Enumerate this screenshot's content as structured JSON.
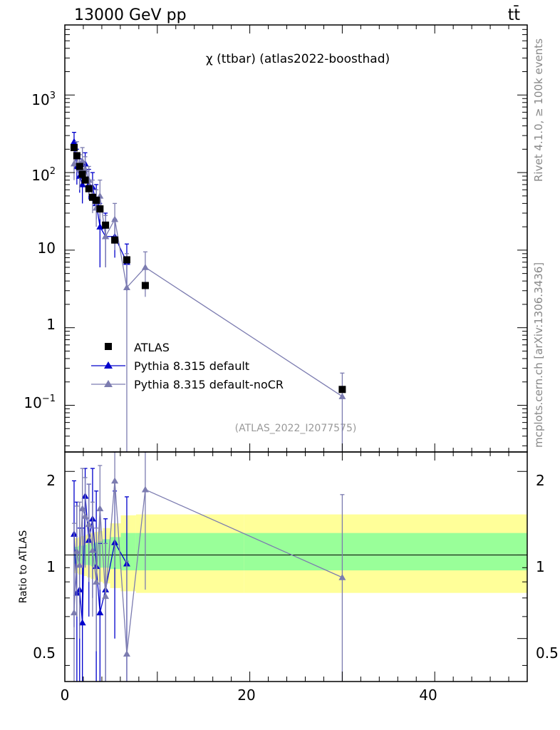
{
  "header": {
    "left": "13000 GeV pp",
    "right": "tt̄"
  },
  "side_labels": {
    "top": "Rivet 4.1.0, ≥ 100k events",
    "bottom": "mcplots.cern.ch [arXiv:1306.3436]"
  },
  "chart_data": {
    "type": "scatter",
    "title": "χ (ttbar) (atlas2022-boosthad)",
    "watermark": "(ATLAS_2022_I2077575)",
    "xlabel": "",
    "ylabel": "",
    "ratio_ylabel": "Ratio to ATLAS",
    "xlim": [
      0,
      50
    ],
    "ylim": [
      0.025,
      8000
    ],
    "ratio_ylim": [
      0.35,
      2.35
    ],
    "main_yticks": [
      {
        "value": 1000,
        "base": "10",
        "exp": "3"
      },
      {
        "value": 100,
        "base": "10",
        "exp": "2"
      },
      {
        "value": 10,
        "base": "10",
        "exp": ""
      },
      {
        "value": 1,
        "base": "1",
        "exp": ""
      },
      {
        "value": 0.1,
        "base": "10",
        "exp": "−1"
      }
    ],
    "ratio_yticks": [
      {
        "value": 0.5,
        "label": "0.5"
      },
      {
        "value": 1,
        "label": "1"
      },
      {
        "value": 2,
        "label": "2"
      }
    ],
    "xticks": [
      {
        "value": 0,
        "label": "0"
      },
      {
        "value": 20,
        "label": "20"
      },
      {
        "value": 40,
        "label": "40"
      }
    ],
    "legend": [
      {
        "label": "ATLAS",
        "color": "#000000",
        "marker": "square"
      },
      {
        "label": "Pythia 8.315 default",
        "color": "#0000cc",
        "marker": "triangle"
      },
      {
        "label": "Pythia 8.315 default-noCR",
        "color": "#7c7cb0",
        "marker": "triangle"
      }
    ],
    "data": {
      "name": "ATLAS",
      "x": [
        1.0,
        1.3,
        1.6,
        1.9,
        2.2,
        2.6,
        3.0,
        3.4,
        3.8,
        4.4,
        5.4,
        6.7,
        8.7,
        30.0
      ],
      "y": [
        210,
        165,
        120,
        95,
        80,
        62,
        48,
        44,
        34,
        21,
        13.5,
        7.5,
        3.5,
        0.16
      ],
      "band_lo_yellow": [
        0.86,
        0.86,
        0.85,
        0.85,
        0.84,
        0.83,
        0.82,
        0.81,
        0.8,
        0.79,
        0.76,
        0.74,
        0.73,
        0.73
      ],
      "band_hi_yellow": [
        1.15,
        1.15,
        1.16,
        1.17,
        1.18,
        1.19,
        1.2,
        1.21,
        1.22,
        1.25,
        1.3,
        1.39,
        1.4,
        1.4
      ],
      "band_lo_green": [
        0.93,
        0.93,
        0.93,
        0.93,
        0.92,
        0.92,
        0.91,
        0.91,
        0.9,
        0.9,
        0.89,
        0.88,
        0.88,
        0.88
      ],
      "band_hi_green": [
        1.07,
        1.07,
        1.08,
        1.08,
        1.09,
        1.1,
        1.1,
        1.11,
        1.12,
        1.14,
        1.16,
        1.2,
        1.2,
        1.2
      ]
    },
    "series": [
      {
        "name": "Pythia 8.315 default",
        "color": "#0000cc",
        "x": [
          1.0,
          1.3,
          1.6,
          1.9,
          2.2,
          2.6,
          3.0,
          3.4,
          3.8,
          4.4,
          5.4,
          6.7
        ],
        "y": [
          250,
          120,
          90,
          70,
          130,
          70,
          65,
          40,
          20,
          15,
          15,
          7
        ],
        "lo": [
          180,
          70,
          55,
          40,
          90,
          45,
          40,
          25,
          6,
          6,
          8,
          3
        ],
        "hi": [
          330,
          200,
          150,
          120,
          180,
          110,
          100,
          70,
          40,
          30,
          25,
          12
        ],
        "ratio": [
          1.19,
          0.73,
          0.75,
          0.57,
          1.63,
          1.13,
          1.35,
          0.91,
          0.62,
          0.75,
          1.11,
          0.93
        ],
        "ratio_lo": [
          0.55,
          0.35,
          0.35,
          0.35,
          1.1,
          0.6,
          0.7,
          0.35,
          0.35,
          0.35,
          0.5,
          0.35
        ],
        "ratio_hi": [
          1.85,
          1.55,
          1.25,
          1.25,
          2.05,
          1.8,
          2.05,
          1.7,
          1.1,
          1.35,
          1.7,
          1.62
        ]
      },
      {
        "name": "Pythia 8.315 default-noCR",
        "color": "#7c7cb0",
        "x": [
          1.0,
          1.3,
          1.6,
          1.9,
          2.2,
          2.6,
          3.0,
          3.4,
          3.8,
          4.4,
          5.4,
          6.7,
          8.7,
          30.0
        ],
        "y": [
          130,
          170,
          110,
          140,
          110,
          80,
          50,
          35,
          50,
          15,
          25,
          3.3,
          6,
          0.13
        ],
        "lo": [
          80,
          110,
          60,
          90,
          75,
          50,
          30,
          20,
          25,
          6,
          10,
          0.025,
          2.5,
          0.025
        ],
        "hi": [
          200,
          250,
          170,
          210,
          160,
          120,
          80,
          60,
          80,
          28,
          40,
          9,
          9.5,
          0.26
        ],
        "ratio": [
          0.62,
          1.03,
          0.92,
          1.47,
          1.38,
          1.29,
          1.04,
          0.8,
          1.47,
          0.71,
          1.85,
          0.44,
          1.72,
          0.83
        ],
        "ratio_lo": [
          0.35,
          0.6,
          0.5,
          0.9,
          0.9,
          0.8,
          0.6,
          0.45,
          0.75,
          0.35,
          0.9,
          0.35,
          0.75,
          0.35
        ],
        "ratio_hi": [
          1.3,
          1.5,
          1.55,
          2.05,
          1.9,
          1.8,
          1.55,
          1.25,
          2.1,
          1.1,
          2.35,
          0.95,
          2.35,
          1.65
        ]
      }
    ]
  }
}
